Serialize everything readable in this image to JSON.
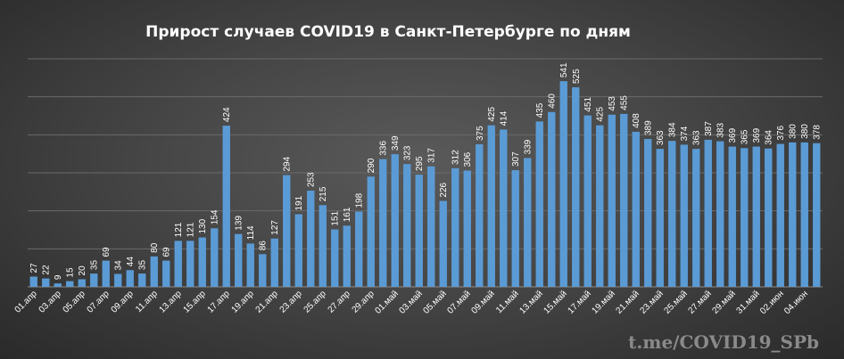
{
  "chart_data": {
    "type": "bar",
    "title": "Прирост  случаев  COVID19  в  Санкт-Петербурге  по  дням",
    "xlabel": "",
    "ylabel": "",
    "ylim": [
      0,
      600
    ],
    "grid": true,
    "legend": "none",
    "bar_color": "#5b9bd5",
    "categories": [
      "01.апр",
      "02.апр",
      "03.апр",
      "04.апр",
      "05.апр",
      "06.апр",
      "07.апр",
      "08.апр",
      "09.апр",
      "10.апр",
      "11.апр",
      "12.апр",
      "13.апр",
      "14.апр",
      "15.апр",
      "16.апр",
      "17.апр",
      "18.апр",
      "19.апр",
      "20.апр",
      "21.апр",
      "22.апр",
      "23.апр",
      "24.апр",
      "25.апр",
      "26.апр",
      "27.апр",
      "28.апр",
      "29.апр",
      "30.апр",
      "01.май",
      "02.май",
      "03.май",
      "04.май",
      "05.май",
      "06.май",
      "07.май",
      "08.май",
      "09.май",
      "10.май",
      "11.май",
      "12.май",
      "13.май",
      "14.май",
      "15.май",
      "16.май",
      "17.май",
      "18.май",
      "19.май",
      "20.май",
      "21.май",
      "22.май",
      "23.май",
      "24.май",
      "25.май",
      "26.май",
      "27.май",
      "28.май",
      "29.май",
      "30.май",
      "31.май",
      "01.июн",
      "02.июн",
      "03.июн",
      "04.июн",
      "05.июн"
    ],
    "values": [
      27,
      22,
      9,
      15,
      20,
      35,
      69,
      34,
      44,
      35,
      80,
      69,
      121,
      121,
      130,
      154,
      424,
      139,
      114,
      86,
      127,
      294,
      191,
      253,
      215,
      151,
      161,
      198,
      290,
      336,
      349,
      323,
      295,
      317,
      226,
      312,
      306,
      375,
      425,
      414,
      307,
      339,
      435,
      460,
      541,
      525,
      451,
      425,
      453,
      455,
      408,
      389,
      363,
      384,
      374,
      363,
      387,
      383,
      369,
      365,
      369,
      364,
      376,
      380,
      380,
      378
    ],
    "tick_labels": [
      "01.апр",
      "03.апр",
      "05.апр",
      "07.апр",
      "09.апр",
      "11.апр",
      "13.апр",
      "15.апр",
      "17.апр",
      "19.апр",
      "21.апр",
      "23.апр",
      "25.апр",
      "27.апр",
      "29.апр",
      "01.май",
      "03.май",
      "05.май",
      "07.май",
      "09.май",
      "11.май",
      "13.май",
      "15.май",
      "17.май",
      "19.май",
      "21.май",
      "23.май",
      "25.май",
      "27.май",
      "29.май",
      "31.май",
      "02.июн",
      "04.июн"
    ]
  },
  "watermark": "t.me/COVID19_SPb"
}
